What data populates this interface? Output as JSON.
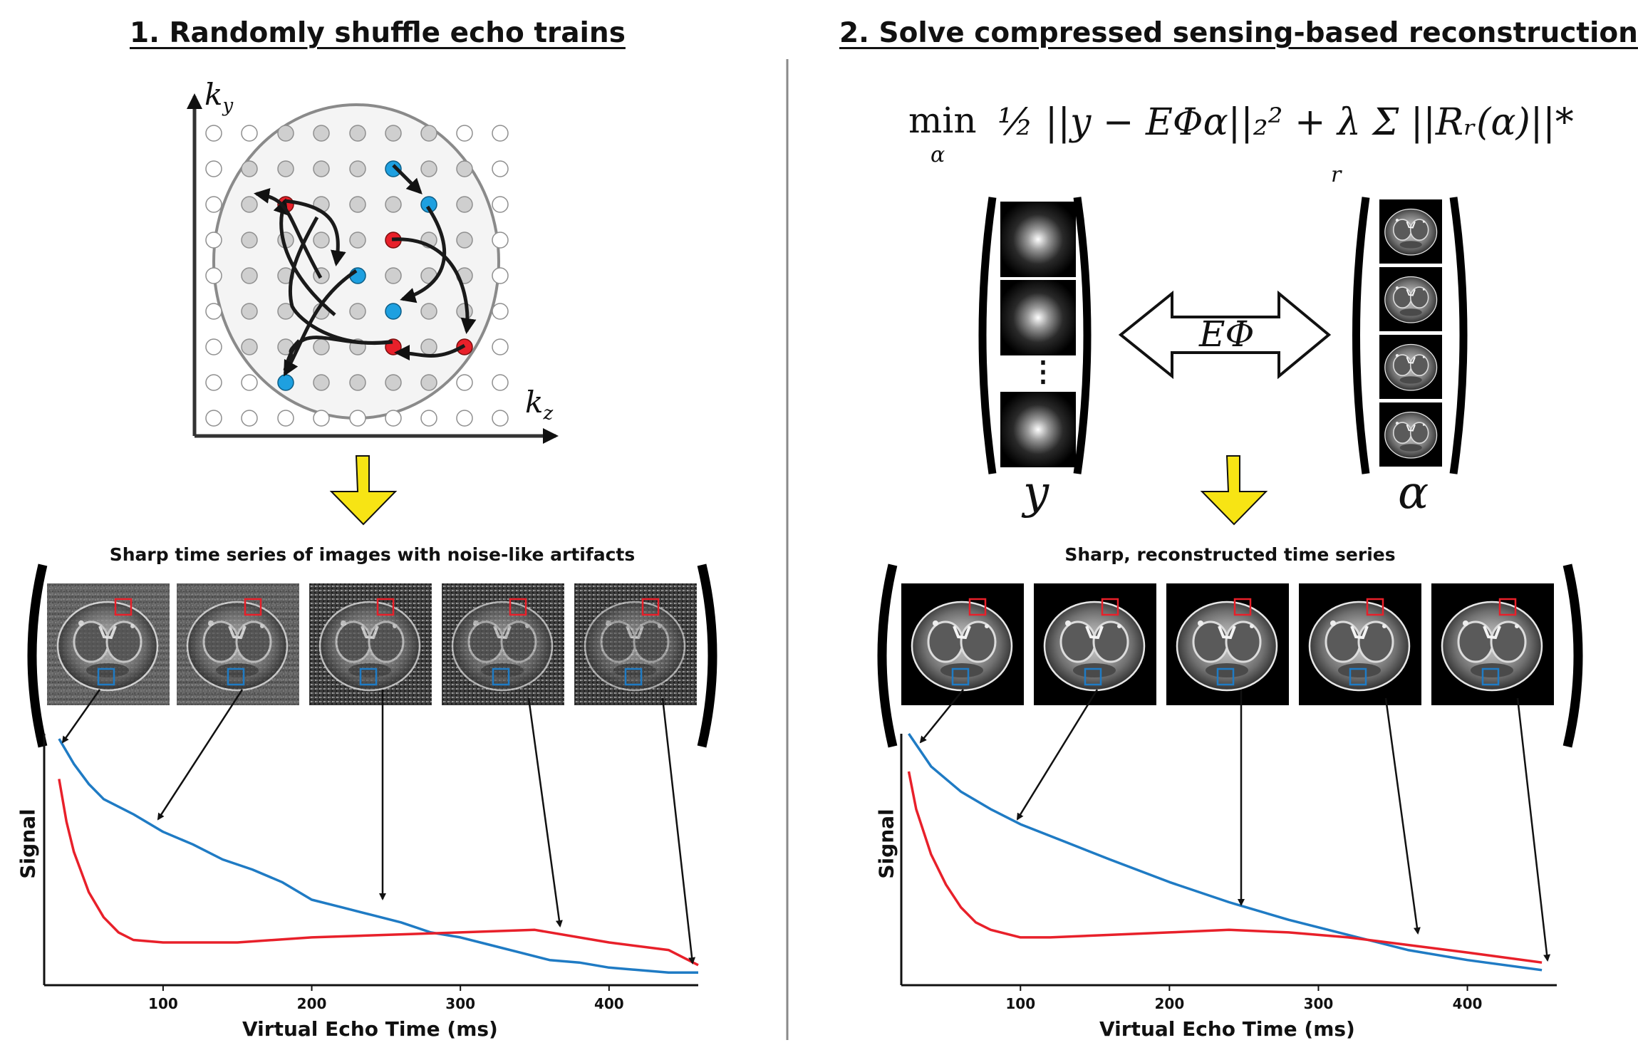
{
  "left": {
    "heading": "1. Randomly shuffle echo trains",
    "kspace_axis_y": "k",
    "kspace_axis_y_sub": "y",
    "kspace_axis_z": "k",
    "kspace_axis_z_sub": "z",
    "caption": "Sharp time series of images with noise-like artifacts",
    "ylabel": "Signal",
    "xlabel": "Virtual Echo Time (ms)"
  },
  "right": {
    "heading": "2. Solve compressed sensing-based reconstruction",
    "equation_min": "min",
    "equation_min_sub": "α",
    "equation_body": "½ ||y − EΦα||₂² + λ Σ ||Rᵣ(α)||*",
    "equation_sum_sub": "r",
    "operator_label": "EΦ",
    "vector_y": "y",
    "vector_alpha": "α",
    "vector_ellipsis": "⋮",
    "caption": "Sharp, reconstructed time series",
    "ylabel": "Signal",
    "xlabel": "Virtual Echo Time (ms)"
  },
  "colors": {
    "red_roi": "#e8202a",
    "blue_roi": "#1f7bc4",
    "arrow_yellow": "#f7e414",
    "kspace_blue": "#1ea0e0",
    "kspace_red": "#e8202a"
  },
  "chart_data": [
    {
      "type": "line",
      "xlabel": "Virtual Echo Time (ms)",
      "ylabel": "Signal",
      "xticks": [
        100,
        200,
        300,
        400
      ],
      "xlim": [
        20,
        460
      ],
      "ylim": [
        0,
        1
      ],
      "series": [
        {
          "color": "#1f7bc4",
          "x": [
            30,
            40,
            50,
            60,
            80,
            100,
            120,
            140,
            160,
            180,
            200,
            220,
            240,
            260,
            280,
            300,
            320,
            340,
            360,
            380,
            400,
            420,
            440,
            460
          ],
          "y": [
            0.98,
            0.88,
            0.8,
            0.74,
            0.68,
            0.61,
            0.56,
            0.5,
            0.46,
            0.41,
            0.34,
            0.31,
            0.28,
            0.25,
            0.21,
            0.19,
            0.16,
            0.13,
            0.1,
            0.09,
            0.07,
            0.06,
            0.05,
            0.05
          ]
        },
        {
          "color": "#e8202a",
          "x": [
            30,
            35,
            40,
            45,
            50,
            60,
            70,
            80,
            100,
            120,
            150,
            200,
            250,
            300,
            350,
            400,
            440,
            460
          ],
          "y": [
            0.82,
            0.65,
            0.53,
            0.45,
            0.37,
            0.27,
            0.21,
            0.18,
            0.17,
            0.17,
            0.17,
            0.19,
            0.2,
            0.21,
            0.22,
            0.17,
            0.14,
            0.08
          ]
        }
      ]
    },
    {
      "type": "line",
      "xlabel": "Virtual Echo Time (ms)",
      "ylabel": "Signal",
      "xticks": [
        100,
        200,
        300,
        400
      ],
      "xlim": [
        20,
        460
      ],
      "ylim": [
        0,
        1
      ],
      "series": [
        {
          "color": "#1f7bc4",
          "x": [
            25,
            40,
            60,
            80,
            100,
            130,
            160,
            200,
            240,
            280,
            320,
            360,
            400,
            450
          ],
          "y": [
            1.0,
            0.87,
            0.77,
            0.7,
            0.64,
            0.57,
            0.5,
            0.41,
            0.33,
            0.26,
            0.2,
            0.14,
            0.1,
            0.06
          ]
        },
        {
          "color": "#e8202a",
          "x": [
            25,
            30,
            40,
            50,
            60,
            70,
            80,
            100,
            120,
            160,
            200,
            240,
            280,
            320,
            360,
            400,
            450
          ],
          "y": [
            0.85,
            0.7,
            0.52,
            0.4,
            0.31,
            0.25,
            0.22,
            0.19,
            0.19,
            0.2,
            0.21,
            0.22,
            0.21,
            0.19,
            0.16,
            0.13,
            0.09
          ]
        }
      ]
    }
  ]
}
